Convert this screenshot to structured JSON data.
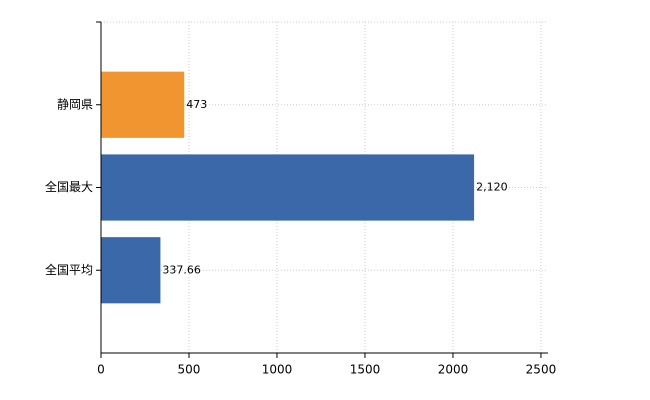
{
  "chart_data": {
    "type": "barh",
    "categories": [
      "静岡県",
      "全国最大",
      "全国平均"
    ],
    "values": [
      473,
      2120,
      337.66
    ],
    "value_labels": [
      "473",
      "2,120",
      "337.66"
    ],
    "colors": [
      "#f0952f",
      "#3a68a8",
      "#3a68a8"
    ],
    "xlim": [
      0,
      2540
    ],
    "xticks": [
      0,
      500,
      1000,
      1500,
      2000,
      2500
    ],
    "grid": true
  }
}
